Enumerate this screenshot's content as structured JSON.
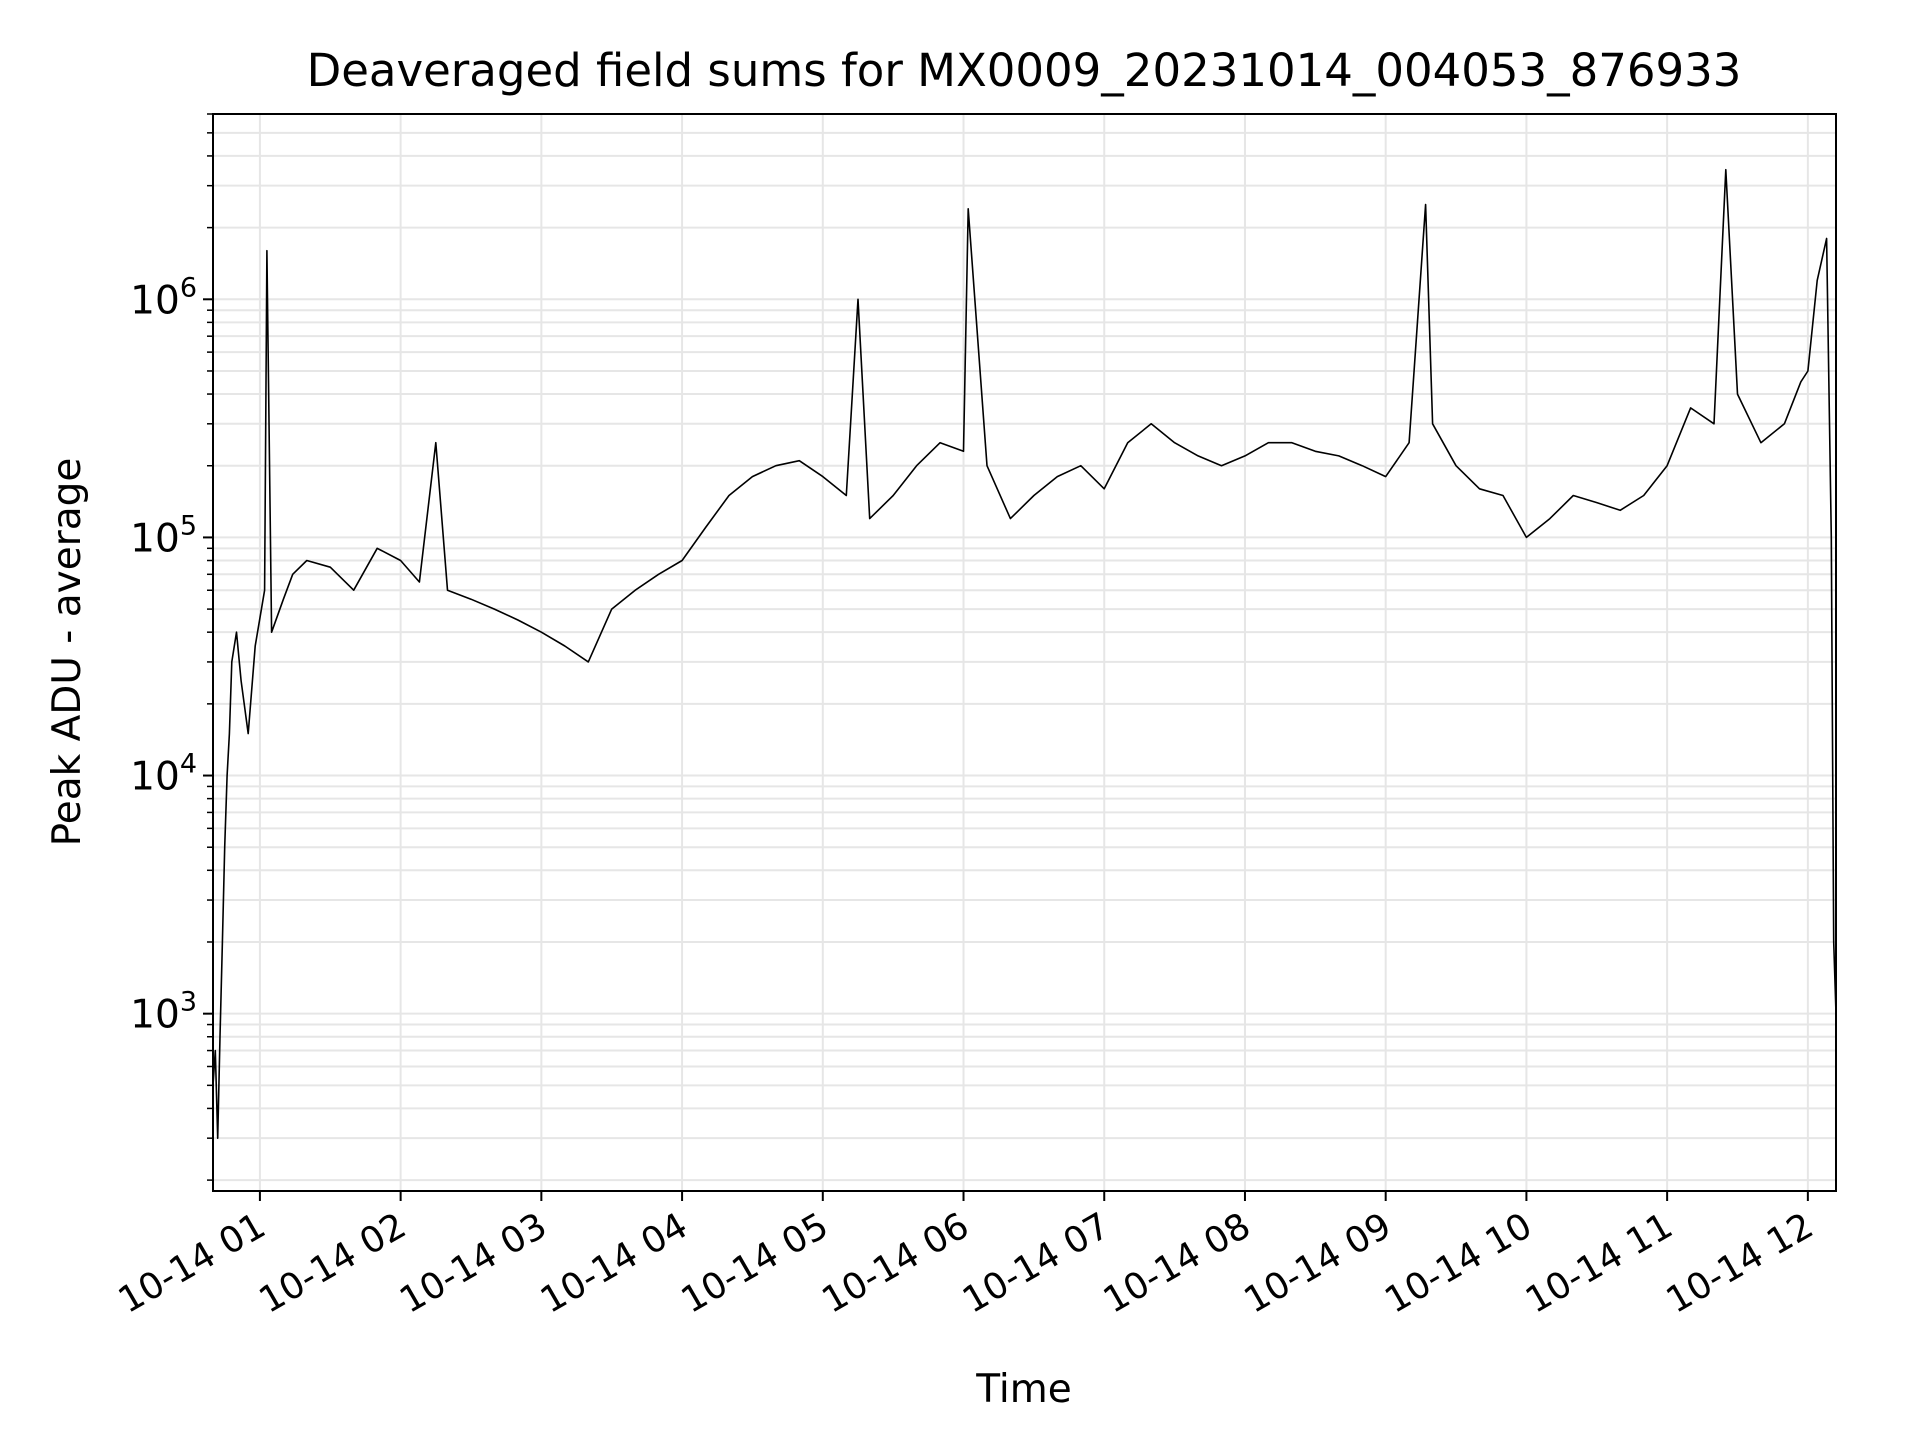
{
  "chart_data": {
    "type": "line",
    "title": "Deaveraged field sums for MX0009_20231014_004053_876933",
    "xlabel": "Time",
    "ylabel": "Peak ADU - average",
    "y_scale": "log",
    "xlim": [
      "2023-10-14 00:40",
      "2023-10-14 12:12"
    ],
    "ylim": [
      180,
      6000000
    ],
    "grid": true,
    "grid_minor_y": true,
    "line_color": "#000000",
    "grid_color": "#e6e6e6",
    "x_ticks": [
      {
        "value": "2023-10-14 01:00",
        "label": "10-14 01"
      },
      {
        "value": "2023-10-14 02:00",
        "label": "10-14 02"
      },
      {
        "value": "2023-10-14 03:00",
        "label": "10-14 03"
      },
      {
        "value": "2023-10-14 04:00",
        "label": "10-14 04"
      },
      {
        "value": "2023-10-14 05:00",
        "label": "10-14 05"
      },
      {
        "value": "2023-10-14 06:00",
        "label": "10-14 06"
      },
      {
        "value": "2023-10-14 07:00",
        "label": "10-14 07"
      },
      {
        "value": "2023-10-14 08:00",
        "label": "10-14 08"
      },
      {
        "value": "2023-10-14 09:00",
        "label": "10-14 09"
      },
      {
        "value": "2023-10-14 10:00",
        "label": "10-14 10"
      },
      {
        "value": "2023-10-14 11:00",
        "label": "10-14 11"
      },
      {
        "value": "2023-10-14 12:00",
        "label": "10-14 12"
      }
    ],
    "y_ticks": [
      {
        "value": 1000,
        "base": "10",
        "exp": "3"
      },
      {
        "value": 10000,
        "base": "10",
        "exp": "4"
      },
      {
        "value": 100000,
        "base": "10",
        "exp": "5"
      },
      {
        "value": 1000000,
        "base": "10",
        "exp": "6"
      }
    ],
    "series": [
      {
        "x": [
          "2023-10-14 00:40",
          "2023-10-14 00:41",
          "2023-10-14 00:42",
          "2023-10-14 00:43",
          "2023-10-14 00:44",
          "2023-10-14 00:45",
          "2023-10-14 00:46",
          "2023-10-14 00:47",
          "2023-10-14 00:48",
          "2023-10-14 00:50",
          "2023-10-14 00:52",
          "2023-10-14 00:55",
          "2023-10-14 00:58",
          "2023-10-14 01:02",
          "2023-10-14 01:03",
          "2023-10-14 01:05",
          "2023-10-14 01:10",
          "2023-10-14 01:14",
          "2023-10-14 01:20",
          "2023-10-14 01:30",
          "2023-10-14 01:40",
          "2023-10-14 01:50",
          "2023-10-14 02:00",
          "2023-10-14 02:08",
          "2023-10-14 02:15",
          "2023-10-14 02:20",
          "2023-10-14 02:30",
          "2023-10-14 02:40",
          "2023-10-14 02:50",
          "2023-10-14 03:00",
          "2023-10-14 03:10",
          "2023-10-14 03:20",
          "2023-10-14 03:30",
          "2023-10-14 03:40",
          "2023-10-14 03:50",
          "2023-10-14 04:00",
          "2023-10-14 04:10",
          "2023-10-14 04:20",
          "2023-10-14 04:30",
          "2023-10-14 04:40",
          "2023-10-14 04:50",
          "2023-10-14 05:00",
          "2023-10-14 05:10",
          "2023-10-14 05:15",
          "2023-10-14 05:20",
          "2023-10-14 05:30",
          "2023-10-14 05:40",
          "2023-10-14 05:50",
          "2023-10-14 06:00",
          "2023-10-14 06:02",
          "2023-10-14 06:10",
          "2023-10-14 06:20",
          "2023-10-14 06:30",
          "2023-10-14 06:40",
          "2023-10-14 06:50",
          "2023-10-14 07:00",
          "2023-10-14 07:10",
          "2023-10-14 07:20",
          "2023-10-14 07:30",
          "2023-10-14 07:40",
          "2023-10-14 07:50",
          "2023-10-14 08:00",
          "2023-10-14 08:10",
          "2023-10-14 08:20",
          "2023-10-14 08:30",
          "2023-10-14 08:40",
          "2023-10-14 08:50",
          "2023-10-14 09:00",
          "2023-10-14 09:10",
          "2023-10-14 09:17",
          "2023-10-14 09:20",
          "2023-10-14 09:30",
          "2023-10-14 09:40",
          "2023-10-14 09:50",
          "2023-10-14 10:00",
          "2023-10-14 10:10",
          "2023-10-14 10:20",
          "2023-10-14 10:30",
          "2023-10-14 10:40",
          "2023-10-14 10:50",
          "2023-10-14 11:00",
          "2023-10-14 11:10",
          "2023-10-14 11:20",
          "2023-10-14 11:25",
          "2023-10-14 11:30",
          "2023-10-14 11:40",
          "2023-10-14 11:50",
          "2023-10-14 11:57",
          "2023-10-14 12:00",
          "2023-10-14 12:04",
          "2023-10-14 12:08",
          "2023-10-14 12:10",
          "2023-10-14 12:11",
          "2023-10-14 12:12"
        ],
        "y": [
          500,
          700,
          300,
          800,
          2000,
          5000,
          10000,
          15000,
          30000,
          40000,
          25000,
          15000,
          35000,
          60000,
          1600000,
          40000,
          55000,
          70000,
          80000,
          75000,
          60000,
          90000,
          80000,
          65000,
          250000,
          60000,
          55000,
          50000,
          45000,
          40000,
          35000,
          30000,
          50000,
          60000,
          70000,
          80000,
          110000,
          150000,
          180000,
          200000,
          210000,
          180000,
          150000,
          1000000,
          120000,
          150000,
          200000,
          250000,
          230000,
          2400000,
          200000,
          120000,
          150000,
          180000,
          200000,
          160000,
          250000,
          300000,
          250000,
          220000,
          200000,
          220000,
          250000,
          250000,
          230000,
          220000,
          200000,
          180000,
          250000,
          2500000,
          300000,
          200000,
          160000,
          150000,
          100000,
          120000,
          150000,
          140000,
          130000,
          150000,
          200000,
          350000,
          300000,
          3500000,
          400000,
          250000,
          300000,
          450000,
          500000,
          1200000,
          1800000,
          100000,
          2000,
          1000
        ]
      }
    ]
  }
}
